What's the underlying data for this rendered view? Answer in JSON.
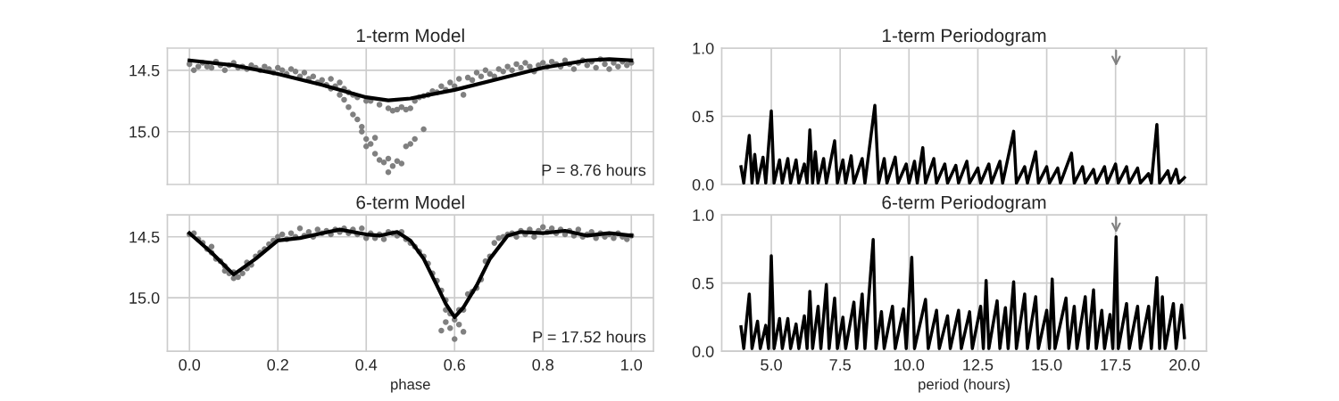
{
  "chart_data": [
    {
      "type": "scatter",
      "title": "1-term Model",
      "annotations": [
        "P = 8.76 hours"
      ],
      "grid": true,
      "tick_labels": "y",
      "xlim": [
        -0.05,
        1.05
      ],
      "xticks": [
        0,
        0.2,
        0.4,
        0.6,
        0.8,
        1
      ],
      "ylim": [
        15.43,
        14.32
      ],
      "yticks": [
        {
          "value": 14.5,
          "label": "14.5"
        },
        {
          "value": 15,
          "label": "15.0"
        }
      ],
      "series": [
        {
          "type": "scatter",
          "marker": "circle",
          "color": "#808080",
          "x": [
            0.0,
            0.01,
            0.02,
            0.03,
            0.04,
            0.05,
            0.06,
            0.07,
            0.08,
            0.09,
            0.1,
            0.11,
            0.12,
            0.13,
            0.14,
            0.15,
            0.16,
            0.17,
            0.18,
            0.19,
            0.2,
            0.21,
            0.22,
            0.23,
            0.24,
            0.25,
            0.26,
            0.27,
            0.28,
            0.29,
            0.3,
            0.31,
            0.32,
            0.32,
            0.33,
            0.34,
            0.34,
            0.35,
            0.35,
            0.36,
            0.36,
            0.37,
            0.37,
            0.38,
            0.38,
            0.39,
            0.4,
            0.39,
            0.4,
            0.41,
            0.4,
            0.41,
            0.42,
            0.42,
            0.43,
            0.43,
            0.44,
            0.45,
            0.45,
            0.46,
            0.46,
            0.45,
            0.47,
            0.47,
            0.48,
            0.48,
            0.49,
            0.49,
            0.5,
            0.5,
            0.51,
            0.51,
            0.52,
            0.53,
            0.53,
            0.54,
            0.55,
            0.56,
            0.57,
            0.58,
            0.59,
            0.6,
            0.61,
            0.62,
            0.63,
            0.64,
            0.65,
            0.66,
            0.67,
            0.68,
            0.69,
            0.7,
            0.71,
            0.72,
            0.73,
            0.74,
            0.75,
            0.76,
            0.77,
            0.78,
            0.79,
            0.8,
            0.81,
            0.82,
            0.83,
            0.84,
            0.85,
            0.86,
            0.87,
            0.88,
            0.89,
            0.9,
            0.91,
            0.92,
            0.93,
            0.94,
            0.95,
            0.96,
            0.97,
            0.98,
            0.99,
            1.0
          ],
          "values": [
            14.45,
            14.5,
            14.47,
            14.44,
            14.47,
            14.48,
            14.43,
            14.46,
            14.5,
            14.46,
            14.44,
            14.48,
            14.47,
            14.49,
            14.46,
            14.48,
            14.5,
            14.47,
            14.49,
            14.52,
            14.48,
            14.5,
            14.53,
            14.49,
            14.51,
            14.55,
            14.52,
            14.57,
            14.55,
            14.6,
            14.58,
            14.62,
            14.57,
            14.65,
            14.63,
            14.7,
            14.6,
            14.74,
            14.65,
            14.8,
            14.68,
            14.86,
            14.7,
            14.9,
            14.72,
            14.96,
            14.75,
            15.0,
            15.06,
            15.1,
            15.12,
            14.75,
            15.05,
            15.18,
            15.23,
            14.78,
            15.25,
            15.22,
            14.81,
            15.28,
            14.83,
            15.33,
            15.24,
            14.82,
            15.26,
            14.8,
            15.12,
            14.82,
            14.81,
            15.1,
            15.06,
            14.75,
            14.72,
            14.98,
            14.71,
            14.7,
            14.67,
            14.68,
            14.63,
            14.66,
            14.6,
            14.63,
            14.57,
            14.7,
            14.56,
            14.58,
            14.52,
            14.55,
            14.5,
            14.53,
            14.55,
            14.49,
            14.51,
            14.47,
            14.5,
            14.45,
            14.48,
            14.44,
            14.47,
            14.51,
            14.46,
            14.44,
            14.47,
            14.43,
            14.45,
            14.47,
            14.42,
            14.45,
            14.49,
            14.44,
            14.42,
            14.46,
            14.43,
            14.48,
            14.41,
            14.45,
            14.49,
            14.44,
            14.47,
            14.43,
            14.46,
            14.44
          ]
        },
        {
          "type": "line",
          "color": "#000000",
          "x": [
            0,
            0.1,
            0.2,
            0.3,
            0.4,
            0.45,
            0.5,
            0.6,
            0.7,
            0.8,
            0.9,
            0.95,
            1.0
          ],
          "values": [
            14.42,
            14.46,
            14.53,
            14.62,
            14.72,
            14.745,
            14.73,
            14.66,
            14.57,
            14.48,
            14.42,
            14.41,
            14.42
          ]
        }
      ]
    },
    {
      "type": "line",
      "title": "1-term Periodogram",
      "grid": true,
      "tick_labels": "y",
      "xlim": [
        3.2,
        20.8
      ],
      "xticks": [
        5,
        7.5,
        10,
        12.5,
        15,
        17.5,
        20
      ],
      "ylim": [
        0,
        1
      ],
      "yticks": [
        {
          "value": 0,
          "label": "0.0"
        },
        {
          "value": 0.5,
          "label": "0.5"
        },
        {
          "value": 1,
          "label": "1.0"
        }
      ],
      "series": [
        {
          "type": "line",
          "color": "#000000",
          "x": [
            3.9,
            4.0,
            4.2,
            4.3,
            4.4,
            4.5,
            4.7,
            4.8,
            5.0,
            5.1,
            5.3,
            5.4,
            5.6,
            5.7,
            5.9,
            6.0,
            6.2,
            6.3,
            6.4,
            6.5,
            6.6,
            6.7,
            6.9,
            7.0,
            7.3,
            7.4,
            7.6,
            7.7,
            7.9,
            8.0,
            8.3,
            8.4,
            8.76,
            8.9,
            9.1,
            9.2,
            9.5,
            9.6,
            9.9,
            10.0,
            10.2,
            10.3,
            10.5,
            10.6,
            10.9,
            11.0,
            11.3,
            11.4,
            11.7,
            11.8,
            12.1,
            12.2,
            12.5,
            12.6,
            12.9,
            13.0,
            13.3,
            13.4,
            13.8,
            13.9,
            14.2,
            14.3,
            14.6,
            14.7,
            15.0,
            15.1,
            15.4,
            15.5,
            15.9,
            16.0,
            16.3,
            16.4,
            16.7,
            16.8,
            17.1,
            17.2,
            17.5,
            17.6,
            17.9,
            18.0,
            18.3,
            18.4,
            18.7,
            18.8,
            19.0,
            19.1,
            19.4,
            19.5,
            19.7,
            19.8,
            20.0
          ],
          "values": [
            0.13,
            0.01,
            0.36,
            0.01,
            0.22,
            0.01,
            0.2,
            0.01,
            0.54,
            0.01,
            0.18,
            0.01,
            0.19,
            0.01,
            0.18,
            0.01,
            0.15,
            0.01,
            0.4,
            0.01,
            0.24,
            0.01,
            0.19,
            0.01,
            0.32,
            0.01,
            0.18,
            0.01,
            0.21,
            0.01,
            0.19,
            0.01,
            0.58,
            0.01,
            0.19,
            0.01,
            0.2,
            0.01,
            0.15,
            0.01,
            0.17,
            0.01,
            0.27,
            0.01,
            0.19,
            0.01,
            0.15,
            0.01,
            0.14,
            0.01,
            0.17,
            0.01,
            0.12,
            0.01,
            0.15,
            0.01,
            0.17,
            0.01,
            0.39,
            0.01,
            0.13,
            0.01,
            0.24,
            0.01,
            0.13,
            0.01,
            0.12,
            0.01,
            0.23,
            0.01,
            0.13,
            0.01,
            0.11,
            0.01,
            0.13,
            0.01,
            0.15,
            0.01,
            0.13,
            0.01,
            0.12,
            0.01,
            0.08,
            0.01,
            0.44,
            0.01,
            0.1,
            0.01,
            0.11,
            0.01,
            0.05
          ]
        }
      ]
    },
    {
      "type": "scatter",
      "title": "6-term Model",
      "xlabel": "phase",
      "annotations": [
        "P = 17.52 hours"
      ],
      "grid": true,
      "xlim": [
        -0.05,
        1.05
      ],
      "xticks": [
        {
          "value": 0,
          "label": "0.0"
        },
        {
          "value": 0.2,
          "label": "0.2"
        },
        {
          "value": 0.4,
          "label": "0.4"
        },
        {
          "value": 0.6,
          "label": "0.6"
        },
        {
          "value": 0.8,
          "label": "0.8"
        },
        {
          "value": 1,
          "label": "1.0"
        }
      ],
      "ylim": [
        15.44,
        14.32
      ],
      "yticks": [
        {
          "value": 14.5,
          "label": "14.5"
        },
        {
          "value": 15,
          "label": "15.0"
        }
      ],
      "series": [
        {
          "type": "scatter",
          "marker": "circle",
          "color": "#808080",
          "x": [
            0.0,
            0.01,
            0.02,
            0.03,
            0.04,
            0.05,
            0.05,
            0.06,
            0.07,
            0.08,
            0.08,
            0.09,
            0.1,
            0.1,
            0.11,
            0.12,
            0.13,
            0.13,
            0.14,
            0.15,
            0.16,
            0.17,
            0.18,
            0.19,
            0.2,
            0.21,
            0.22,
            0.23,
            0.24,
            0.25,
            0.26,
            0.27,
            0.28,
            0.29,
            0.3,
            0.31,
            0.32,
            0.33,
            0.34,
            0.35,
            0.36,
            0.37,
            0.38,
            0.39,
            0.4,
            0.41,
            0.42,
            0.43,
            0.44,
            0.45,
            0.46,
            0.47,
            0.48,
            0.49,
            0.5,
            0.51,
            0.52,
            0.53,
            0.54,
            0.55,
            0.56,
            0.57,
            0.58,
            0.58,
            0.57,
            0.58,
            0.59,
            0.59,
            0.6,
            0.6,
            0.61,
            0.61,
            0.62,
            0.62,
            0.63,
            0.64,
            0.65,
            0.66,
            0.67,
            0.68,
            0.69,
            0.7,
            0.71,
            0.72,
            0.73,
            0.74,
            0.75,
            0.76,
            0.77,
            0.78,
            0.79,
            0.8,
            0.81,
            0.82,
            0.83,
            0.84,
            0.85,
            0.86,
            0.87,
            0.88,
            0.89,
            0.9,
            0.91,
            0.92,
            0.93,
            0.94,
            0.95,
            0.96,
            0.97,
            0.98,
            0.99,
            1.0
          ],
          "values": [
            14.48,
            14.47,
            14.52,
            14.55,
            14.6,
            14.63,
            14.58,
            14.68,
            14.7,
            14.74,
            14.78,
            14.8,
            14.84,
            14.79,
            14.83,
            14.8,
            14.76,
            14.71,
            14.73,
            14.66,
            14.63,
            14.6,
            14.56,
            14.53,
            14.5,
            14.48,
            14.52,
            14.47,
            14.5,
            14.43,
            14.49,
            14.46,
            14.5,
            14.44,
            14.47,
            14.45,
            14.48,
            14.44,
            14.46,
            14.43,
            14.47,
            14.44,
            14.48,
            14.43,
            14.51,
            14.47,
            14.51,
            14.48,
            14.52,
            14.46,
            14.47,
            14.49,
            14.46,
            14.52,
            14.55,
            14.58,
            14.62,
            14.66,
            14.72,
            14.8,
            14.86,
            14.94,
            15.02,
            15.1,
            15.27,
            15.2,
            15.13,
            15.25,
            15.34,
            15.18,
            15.22,
            15.1,
            15.28,
            15.1,
            14.97,
            14.95,
            14.92,
            14.85,
            14.7,
            14.66,
            14.55,
            14.51,
            14.5,
            14.48,
            14.47,
            14.5,
            14.45,
            14.48,
            14.44,
            14.5,
            14.45,
            14.42,
            14.46,
            14.43,
            14.47,
            14.44,
            14.48,
            14.45,
            14.49,
            14.44,
            14.5,
            14.48,
            14.46,
            14.51,
            14.47,
            14.5,
            14.48,
            14.51,
            14.47,
            14.5,
            14.52,
            14.49
          ]
        },
        {
          "type": "line",
          "color": "#000000",
          "x": [
            0,
            0.05,
            0.1,
            0.15,
            0.2,
            0.25,
            0.3,
            0.34,
            0.4,
            0.43,
            0.47,
            0.5,
            0.53,
            0.56,
            0.58,
            0.6,
            0.62,
            0.65,
            0.68,
            0.72,
            0.75,
            0.8,
            0.85,
            0.9,
            0.95,
            1.0
          ],
          "values": [
            14.47,
            14.63,
            14.81,
            14.68,
            14.53,
            14.51,
            14.47,
            14.44,
            14.48,
            14.49,
            14.46,
            14.53,
            14.68,
            14.9,
            15.05,
            15.16,
            15.08,
            14.9,
            14.68,
            14.49,
            14.46,
            14.47,
            14.45,
            14.49,
            14.47,
            14.49
          ]
        }
      ]
    },
    {
      "type": "line",
      "title": "6-term Periodogram",
      "xlabel": "period (hours)",
      "grid": true,
      "xlim": [
        3.2,
        20.8
      ],
      "xticks": [
        {
          "value": 5,
          "label": "5.0"
        },
        {
          "value": 7.5,
          "label": "7.5"
        },
        {
          "value": 10,
          "label": "10.0"
        },
        {
          "value": 12.5,
          "label": "12.5"
        },
        {
          "value": 15,
          "label": "15.0"
        },
        {
          "value": 17.5,
          "label": "17.5"
        },
        {
          "value": 20,
          "label": "20.0"
        }
      ],
      "ylim": [
        0,
        1
      ],
      "yticks": [
        {
          "value": 0,
          "label": "0.0"
        },
        {
          "value": 0.5,
          "label": "0.5"
        },
        {
          "value": 1,
          "label": "1.0"
        }
      ],
      "series": [
        {
          "type": "line",
          "color": "#000000",
          "x": [
            3.9,
            4.0,
            4.2,
            4.3,
            4.5,
            4.6,
            4.8,
            4.9,
            5.0,
            5.1,
            5.3,
            5.4,
            5.6,
            5.7,
            5.9,
            6.0,
            6.2,
            6.3,
            6.4,
            6.5,
            6.7,
            6.8,
            7.0,
            7.1,
            7.3,
            7.4,
            7.6,
            7.7,
            8.0,
            8.1,
            8.3,
            8.4,
            8.7,
            8.8,
            9.0,
            9.1,
            9.4,
            9.5,
            9.8,
            9.9,
            10.1,
            10.2,
            10.6,
            10.7,
            11.0,
            11.1,
            11.4,
            11.5,
            11.8,
            11.9,
            12.2,
            12.3,
            12.6,
            12.7,
            12.8,
            12.9,
            13.2,
            13.3,
            13.5,
            13.6,
            13.8,
            13.9,
            14.2,
            14.3,
            14.6,
            14.7,
            15.0,
            15.1,
            15.2,
            15.3,
            15.7,
            15.8,
            16.0,
            16.1,
            16.4,
            16.5,
            16.7,
            16.8,
            17.0,
            17.1,
            17.3,
            17.4,
            17.52,
            17.6,
            17.9,
            18.0,
            18.3,
            18.4,
            18.7,
            18.8,
            19.0,
            19.1,
            19.2,
            19.3,
            19.6,
            19.7,
            19.9,
            20.0
          ],
          "values": [
            0.18,
            0.02,
            0.42,
            0.02,
            0.22,
            0.02,
            0.19,
            0.02,
            0.7,
            0.02,
            0.24,
            0.02,
            0.24,
            0.02,
            0.2,
            0.02,
            0.26,
            0.02,
            0.44,
            0.02,
            0.33,
            0.02,
            0.49,
            0.02,
            0.39,
            0.02,
            0.25,
            0.02,
            0.36,
            0.02,
            0.42,
            0.02,
            0.82,
            0.02,
            0.29,
            0.02,
            0.33,
            0.02,
            0.31,
            0.02,
            0.69,
            0.02,
            0.38,
            0.02,
            0.3,
            0.02,
            0.26,
            0.02,
            0.3,
            0.02,
            0.29,
            0.02,
            0.33,
            0.02,
            0.52,
            0.02,
            0.37,
            0.02,
            0.32,
            0.02,
            0.51,
            0.02,
            0.42,
            0.02,
            0.4,
            0.02,
            0.3,
            0.02,
            0.53,
            0.02,
            0.39,
            0.02,
            0.33,
            0.02,
            0.4,
            0.02,
            0.45,
            0.02,
            0.3,
            0.02,
            0.27,
            0.02,
            0.84,
            0.02,
            0.35,
            0.02,
            0.33,
            0.02,
            0.33,
            0.02,
            0.54,
            0.02,
            0.4,
            0.02,
            0.35,
            0.02,
            0.34,
            0.1
          ]
        }
      ]
    }
  ]
}
